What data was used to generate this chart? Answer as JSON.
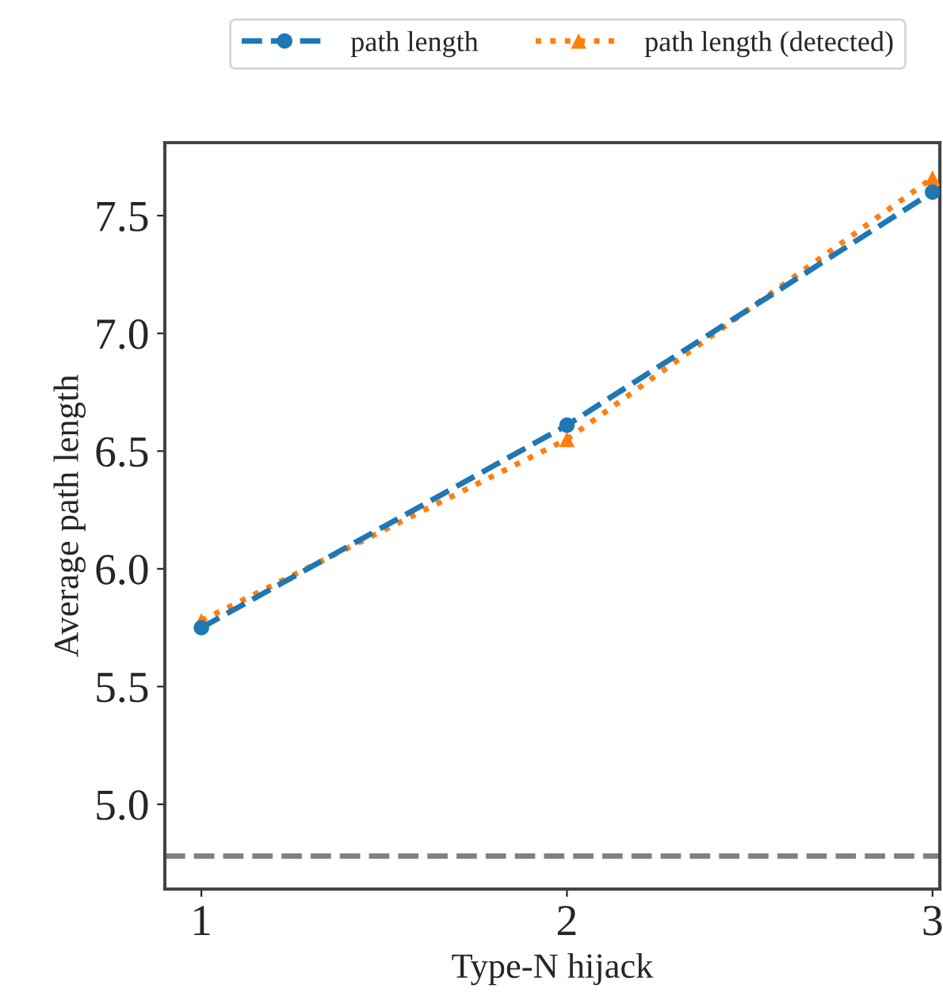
{
  "chart_data": {
    "type": "line",
    "xlabel": "Type-N hijack",
    "ylabel": "Average path length",
    "x": [
      1,
      2,
      3
    ],
    "series": [
      {
        "name": "path length",
        "color": "#1f77b4",
        "values": [
          5.75,
          6.61,
          7.6
        ],
        "marker": "circle",
        "line_style": "dashed"
      },
      {
        "name": "path length (detected)",
        "color": "#ff7f0e",
        "values": [
          5.78,
          6.55,
          7.66
        ],
        "marker": "triangle",
        "line_style": "dotted"
      }
    ],
    "xlim": [
      0.9,
      3.02
    ],
    "xticks": [
      1,
      2,
      3
    ],
    "ylim": [
      4.64,
      7.81
    ],
    "yticks": [
      {
        "value": 5.0,
        "label": "5.0"
      },
      5.5,
      {
        "value": 6.0,
        "label": "6.0"
      },
      6.5,
      {
        "value": 7.0,
        "label": "7.0"
      },
      7.5
    ],
    "ref_lines": [
      {
        "axis": "y",
        "value": 4.78,
        "color": "#808080",
        "line_style": "dashed"
      }
    ],
    "grid": false,
    "legend": "top"
  }
}
